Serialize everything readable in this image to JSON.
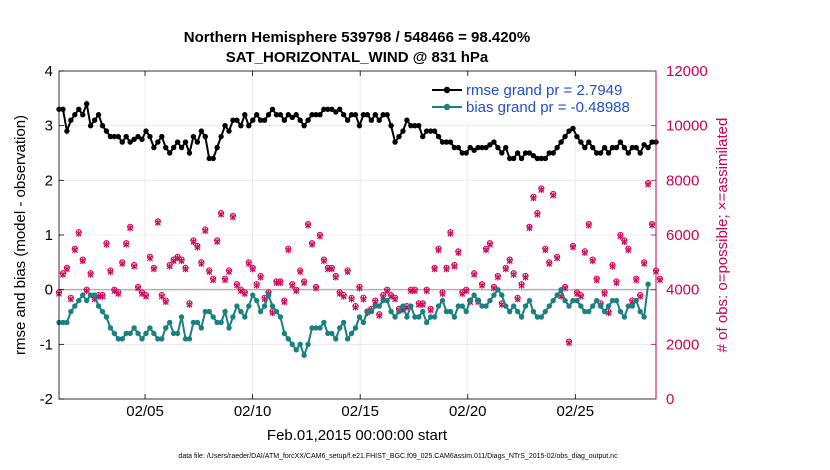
{
  "chart_data": {
    "type": "line",
    "title_line1": "Northern Hemisphere 539798 / 548466 = 98.420%",
    "title_line2": "SAT_HORIZONTAL_WIND @ 831 hPa",
    "xlabel": "Feb.01,2015 00:00:00 start",
    "ylabel_left": "rmse and bias (model - observation)",
    "ylabel_right": "# of obs: o=possible; ×=assimilated",
    "footnote": "data file: /Users/raeder/DAI/ATM_forcXX/CAM6_setup/f.e21.FHIST_BGC.f09_025.CAM6assim.011/Diags_NTrS_2015-02/obs_diag_output.nc",
    "x_range": [
      1,
      28.75
    ],
    "ylim_left": [
      -2,
      4
    ],
    "ylim_right": [
      0,
      12000
    ],
    "x_ticks": [
      5,
      10,
      15,
      20,
      25
    ],
    "x_tick_labels": [
      "02/05",
      "02/10",
      "02/15",
      "02/20",
      "02/25"
    ],
    "y_ticks_left": [
      -2,
      -1,
      0,
      1,
      2,
      3,
      4
    ],
    "y_tick_labels_left": [
      "-2",
      "-1",
      "0",
      "1",
      "2",
      "3",
      "4"
    ],
    "y_ticks_right": [
      0,
      2000,
      4000,
      6000,
      8000,
      10000,
      12000
    ],
    "y_tick_labels_right": [
      "0",
      "2000",
      "4000",
      "6000",
      "8000",
      "10000",
      "12000"
    ],
    "colors": {
      "rmse": "#000000",
      "bias": "#1a8080",
      "obs": "#cc0055",
      "zero_line": "#b3b3b3",
      "grid": "#e6e6e6",
      "legend_text": "#1f4fd1"
    },
    "legend": {
      "placement": "top-right",
      "rmse_label": "rmse grand pr = 2.7949",
      "bias_label": "bias grand pr = -0.48988"
    },
    "series": [
      {
        "name": "rmse",
        "values": [
          3.3,
          3.3,
          2.9,
          3.1,
          3.2,
          3.3,
          3.2,
          3.4,
          3.0,
          3.1,
          3.2,
          3.0,
          2.9,
          2.8,
          2.8,
          2.8,
          2.7,
          2.8,
          2.7,
          2.75,
          2.8,
          2.75,
          2.9,
          2.8,
          2.6,
          2.7,
          2.8,
          2.6,
          2.5,
          2.6,
          2.7,
          2.6,
          2.7,
          2.5,
          2.8,
          2.7,
          2.9,
          2.8,
          2.4,
          2.4,
          2.6,
          2.8,
          3.0,
          2.9,
          3.1,
          3.1,
          3.0,
          3.2,
          3.0,
          3.1,
          3.2,
          3.1,
          3.1,
          3.2,
          3.3,
          3.2,
          3.2,
          3.1,
          3.2,
          3.15,
          3.2,
          3.1,
          3.0,
          3.1,
          3.2,
          3.2,
          3.2,
          3.3,
          3.3,
          3.3,
          3.25,
          3.3,
          3.2,
          3.1,
          3.2,
          3.2,
          3.0,
          3.2,
          3.2,
          3.1,
          3.2,
          3.1,
          3.2,
          3.2,
          3.0,
          2.7,
          2.8,
          2.9,
          3.1,
          3.0,
          3.0,
          3.0,
          2.8,
          2.9,
          2.9,
          2.9,
          2.8,
          2.7,
          2.7,
          2.7,
          2.6,
          2.6,
          2.5,
          2.5,
          2.6,
          2.55,
          2.6,
          2.6,
          2.6,
          2.65,
          2.7,
          2.6,
          2.5,
          2.6,
          2.4,
          2.4,
          2.5,
          2.4,
          2.5,
          2.5,
          2.45,
          2.4,
          2.4,
          2.4,
          2.5,
          2.5,
          2.6,
          2.7,
          2.8,
          2.9,
          2.95,
          2.8,
          2.7,
          2.6,
          2.7,
          2.6,
          2.5,
          2.5,
          2.6,
          2.5,
          2.6,
          2.6,
          2.7,
          2.6,
          2.5,
          2.6,
          2.6,
          2.5,
          2.65,
          2.6,
          2.7,
          2.7
        ]
      },
      {
        "name": "bias",
        "values": [
          -0.6,
          -0.6,
          -0.6,
          -0.4,
          -0.3,
          -0.2,
          -0.1,
          -0.2,
          -0.1,
          -0.1,
          -0.3,
          -0.4,
          -0.5,
          -0.7,
          -0.8,
          -0.9,
          -0.9,
          -0.8,
          -0.8,
          -0.7,
          -0.8,
          -0.9,
          -0.8,
          -0.7,
          -0.8,
          -0.9,
          -0.9,
          -0.7,
          -0.6,
          -0.8,
          -0.8,
          -0.5,
          -0.9,
          -0.9,
          -0.6,
          -0.6,
          -0.7,
          -0.4,
          -0.4,
          -0.5,
          -0.6,
          -0.6,
          -0.4,
          -0.7,
          -0.5,
          -0.3,
          -0.4,
          -0.5,
          -0.3,
          -0.1,
          -0.2,
          -0.4,
          -0.3,
          -0.1,
          -0.3,
          -0.4,
          -0.5,
          -0.8,
          -0.9,
          -1.0,
          -1.1,
          -1.0,
          -1.2,
          -1.0,
          -0.7,
          -0.7,
          -0.7,
          -0.6,
          -0.8,
          -0.8,
          -0.9,
          -0.7,
          -0.6,
          -0.9,
          -0.8,
          -0.7,
          -0.5,
          -0.6,
          -0.4,
          -0.4,
          -0.3,
          -0.3,
          -0.2,
          -0.2,
          -0.4,
          -0.5,
          -0.4,
          -0.3,
          -0.5,
          -0.3,
          -0.5,
          -0.5,
          -0.4,
          -0.6,
          -0.5,
          -0.5,
          -0.3,
          -0.2,
          -0.4,
          -0.4,
          -0.5,
          -0.3,
          -0.3,
          -0.4,
          -0.2,
          -0.1,
          -0.2,
          -0.3,
          -0.3,
          -0.2,
          -0.1,
          0.0,
          -0.1,
          -0.3,
          -0.4,
          -0.3,
          -0.4,
          -0.5,
          -0.3,
          -0.2,
          -0.4,
          -0.5,
          -0.5,
          -0.4,
          -0.3,
          -0.2,
          -0.1,
          0.0,
          -0.2,
          -0.3,
          -0.2,
          -0.2,
          -0.3,
          -0.4,
          -0.4,
          -0.3,
          -0.2,
          -0.3,
          -0.4,
          -0.3,
          -0.2,
          -0.2,
          -0.4,
          -0.5,
          -0.3,
          -0.3,
          -0.2,
          -0.4,
          -0.5,
          0.1
        ]
      },
      {
        "name": "obs_possible",
        "values": [
          3900,
          4600,
          4800,
          3700,
          5500,
          6100,
          5100,
          4000,
          4600,
          3700,
          3800,
          3800,
          5700,
          4700,
          4000,
          3900,
          5000,
          5700,
          6300,
          4900,
          4100,
          3900,
          3800,
          5200,
          4800,
          6500,
          3800,
          3600,
          4900,
          5100,
          5200,
          5100,
          4800,
          3500,
          5800,
          5600,
          5000,
          6200,
          4700,
          4400,
          5800,
          6800,
          4400,
          4700,
          6700,
          4200,
          4000,
          3900,
          5000,
          4800,
          4200,
          4500,
          3700,
          3900,
          3200,
          4300,
          4300,
          3600,
          5500,
          4200,
          4000,
          4700,
          4300,
          6400,
          5700,
          4100,
          6000,
          5100,
          4800,
          4800,
          4500,
          3900,
          3800,
          4700,
          3700,
          3400,
          4100,
          3700,
          3200,
          3300,
          3600,
          3100,
          3800,
          4000,
          3800,
          3700,
          3300,
          3300,
          3400,
          4000,
          4000,
          3500,
          3500,
          4000,
          3300,
          4800,
          5500,
          3900,
          4800,
          6100,
          4900,
          5400,
          3900,
          4000,
          3600,
          4600,
          3600,
          4200,
          5500,
          5700,
          4100,
          4500,
          3500,
          4800,
          5100,
          4600,
          3700,
          4200,
          4500,
          6300,
          7400,
          6800,
          7700,
          5500,
          5000,
          7500,
          5200,
          3800,
          4100,
          2100,
          5600,
          3900,
          3800,
          5400,
          6400,
          5100,
          4400,
          3500,
          3900,
          3200,
          4900,
          4300,
          6000,
          5800,
          5500,
          3600,
          4400,
          3800,
          5000,
          7900,
          6400,
          4700,
          4400
        ]
      },
      {
        "name": "obs_assimilated",
        "values": [
          3850,
          4550,
          4750,
          3650,
          5450,
          6050,
          5050,
          3950,
          4550,
          3650,
          3750,
          3750,
          5650,
          4650,
          3950,
          3850,
          4950,
          5650,
          6250,
          4850,
          4050,
          3850,
          3750,
          5150,
          4750,
          6450,
          3750,
          3550,
          4850,
          5050,
          5150,
          5050,
          4750,
          3450,
          5750,
          5550,
          4950,
          6150,
          4650,
          4350,
          5750,
          6750,
          4350,
          4650,
          6650,
          4150,
          3950,
          3850,
          4950,
          4750,
          4150,
          4450,
          3650,
          3850,
          3150,
          4250,
          4250,
          3550,
          5450,
          4150,
          3950,
          4650,
          4250,
          6350,
          5650,
          4050,
          5950,
          5050,
          4750,
          4750,
          4450,
          3850,
          3750,
          4650,
          3650,
          3350,
          4050,
          3650,
          3150,
          3250,
          3550,
          3050,
          3750,
          3950,
          3750,
          3650,
          3250,
          3250,
          3350,
          3950,
          3950,
          3450,
          3450,
          3950,
          3250,
          4750,
          5450,
          3850,
          4750,
          6050,
          4850,
          5350,
          3850,
          3950,
          3550,
          4550,
          3550,
          4150,
          5450,
          5650,
          4050,
          4450,
          3450,
          4750,
          5050,
          4550,
          3650,
          4150,
          4450,
          6250,
          7350,
          6750,
          7650,
          5450,
          4950,
          7450,
          5150,
          3750,
          4050,
          2050,
          5550,
          3850,
          3750,
          5350,
          6350,
          5050,
          4350,
          3450,
          3850,
          3150,
          4850,
          4250,
          5950,
          5750,
          5450,
          3550,
          4350,
          3750,
          4950,
          7850,
          6350,
          4650,
          4350
        ]
      }
    ]
  }
}
